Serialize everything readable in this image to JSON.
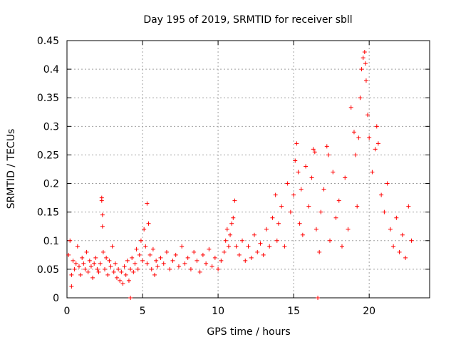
{
  "chart_data": {
    "type": "scatter",
    "title": "Day 195 of 2019, SRMTID for receiver sbll",
    "xlabel": "GPS time / hours",
    "ylabel": "SRMTID / TECUs",
    "xlim": [
      0,
      24
    ],
    "ylim": [
      0,
      0.45
    ],
    "grid": true,
    "marker": "+",
    "color": "#ff0000",
    "xticks": [
      0,
      5,
      10,
      15,
      20
    ],
    "xtick_labels": [
      "0",
      "5",
      "10",
      "15",
      "20"
    ],
    "yticks": [
      0,
      0.05,
      0.1,
      0.15,
      0.2,
      0.25,
      0.3,
      0.35,
      0.4,
      0.45
    ],
    "ytick_labels": [
      "0",
      "0.05",
      "0.1",
      "0.15",
      "0.2",
      "0.25",
      "0.3",
      "0.35",
      "0.4",
      "0.45"
    ],
    "series": [
      {
        "name": "SRMTID",
        "points": [
          [
            0.1,
            0.075
          ],
          [
            0.2,
            0.1
          ],
          [
            0.3,
            0.04
          ],
          [
            0.3,
            0.02
          ],
          [
            0.4,
            0.065
          ],
          [
            0.5,
            0.05
          ],
          [
            0.6,
            0.06
          ],
          [
            0.7,
            0.09
          ],
          [
            0.8,
            0.055
          ],
          [
            0.9,
            0.04
          ],
          [
            1.0,
            0.07
          ],
          [
            1.1,
            0.06
          ],
          [
            1.2,
            0.05
          ],
          [
            1.3,
            0.08
          ],
          [
            1.4,
            0.045
          ],
          [
            1.5,
            0.065
          ],
          [
            1.6,
            0.055
          ],
          [
            1.7,
            0.035
          ],
          [
            1.8,
            0.06
          ],
          [
            1.9,
            0.07
          ],
          [
            2.0,
            0.05
          ],
          [
            2.1,
            0.045
          ],
          [
            2.2,
            0.06
          ],
          [
            2.3,
            0.175
          ],
          [
            2.3,
            0.17
          ],
          [
            2.35,
            0.145
          ],
          [
            2.35,
            0.125
          ],
          [
            2.4,
            0.08
          ],
          [
            2.5,
            0.05
          ],
          [
            2.6,
            0.07
          ],
          [
            2.7,
            0.04
          ],
          [
            2.8,
            0.065
          ],
          [
            2.9,
            0.055
          ],
          [
            3.0,
            0.09
          ],
          [
            3.1,
            0.045
          ],
          [
            3.2,
            0.06
          ],
          [
            3.3,
            0.035
          ],
          [
            3.4,
            0.05
          ],
          [
            3.5,
            0.03
          ],
          [
            3.6,
            0.045
          ],
          [
            3.7,
            0.025
          ],
          [
            3.8,
            0.055
          ],
          [
            3.9,
            0.04
          ],
          [
            4.0,
            0.065
          ],
          [
            4.1,
            0.03
          ],
          [
            4.2,
            0.05
          ],
          [
            4.2,
            0.0
          ],
          [
            4.3,
            0.07
          ],
          [
            4.4,
            0.045
          ],
          [
            4.5,
            0.06
          ],
          [
            4.6,
            0.085
          ],
          [
            4.7,
            0.05
          ],
          [
            4.8,
            0.075
          ],
          [
            4.9,
            0.1
          ],
          [
            5.0,
            0.065
          ],
          [
            5.1,
            0.12
          ],
          [
            5.2,
            0.09
          ],
          [
            5.3,
            0.06
          ],
          [
            5.3,
            0.165
          ],
          [
            5.4,
            0.13
          ],
          [
            5.5,
            0.075
          ],
          [
            5.6,
            0.05
          ],
          [
            5.7,
            0.085
          ],
          [
            5.8,
            0.04
          ],
          [
            5.9,
            0.065
          ],
          [
            6.0,
            0.055
          ],
          [
            6.2,
            0.07
          ],
          [
            6.4,
            0.06
          ],
          [
            6.6,
            0.08
          ],
          [
            6.8,
            0.05
          ],
          [
            7.0,
            0.065
          ],
          [
            7.2,
            0.075
          ],
          [
            7.4,
            0.055
          ],
          [
            7.6,
            0.09
          ],
          [
            7.8,
            0.06
          ],
          [
            8.0,
            0.07
          ],
          [
            8.2,
            0.05
          ],
          [
            8.4,
            0.08
          ],
          [
            8.6,
            0.065
          ],
          [
            8.8,
            0.045
          ],
          [
            9.0,
            0.075
          ],
          [
            9.2,
            0.06
          ],
          [
            9.4,
            0.085
          ],
          [
            9.6,
            0.055
          ],
          [
            9.8,
            0.07
          ],
          [
            10.0,
            0.05
          ],
          [
            10.2,
            0.065
          ],
          [
            10.4,
            0.08
          ],
          [
            10.5,
            0.1
          ],
          [
            10.6,
            0.12
          ],
          [
            10.7,
            0.09
          ],
          [
            10.8,
            0.11
          ],
          [
            10.9,
            0.13
          ],
          [
            11.0,
            0.14
          ],
          [
            11.1,
            0.17
          ],
          [
            11.2,
            0.09
          ],
          [
            11.4,
            0.075
          ],
          [
            11.6,
            0.1
          ],
          [
            11.8,
            0.065
          ],
          [
            12.0,
            0.09
          ],
          [
            12.2,
            0.07
          ],
          [
            12.4,
            0.11
          ],
          [
            12.6,
            0.08
          ],
          [
            12.8,
            0.095
          ],
          [
            13.0,
            0.075
          ],
          [
            13.2,
            0.12
          ],
          [
            13.4,
            0.09
          ],
          [
            13.6,
            0.14
          ],
          [
            13.8,
            0.18
          ],
          [
            13.9,
            0.1
          ],
          [
            14.0,
            0.13
          ],
          [
            14.2,
            0.16
          ],
          [
            14.4,
            0.09
          ],
          [
            14.6,
            0.2
          ],
          [
            14.8,
            0.15
          ],
          [
            15.0,
            0.18
          ],
          [
            15.1,
            0.24
          ],
          [
            15.2,
            0.27
          ],
          [
            15.3,
            0.22
          ],
          [
            15.4,
            0.13
          ],
          [
            15.5,
            0.19
          ],
          [
            15.6,
            0.11
          ],
          [
            15.8,
            0.23
          ],
          [
            16.0,
            0.16
          ],
          [
            16.2,
            0.21
          ],
          [
            16.3,
            0.26
          ],
          [
            16.4,
            0.255
          ],
          [
            16.5,
            0.12
          ],
          [
            16.6,
            0.0
          ],
          [
            16.7,
            0.08
          ],
          [
            16.8,
            0.15
          ],
          [
            17.0,
            0.19
          ],
          [
            17.2,
            0.265
          ],
          [
            17.3,
            0.25
          ],
          [
            17.4,
            0.1
          ],
          [
            17.6,
            0.22
          ],
          [
            17.8,
            0.14
          ],
          [
            18.0,
            0.17
          ],
          [
            18.2,
            0.09
          ],
          [
            18.4,
            0.21
          ],
          [
            18.6,
            0.12
          ],
          [
            18.8,
            0.333
          ],
          [
            19.0,
            0.29
          ],
          [
            19.1,
            0.25
          ],
          [
            19.2,
            0.16
          ],
          [
            19.3,
            0.28
          ],
          [
            19.4,
            0.35
          ],
          [
            19.5,
            0.4
          ],
          [
            19.6,
            0.42
          ],
          [
            19.7,
            0.43
          ],
          [
            19.75,
            0.41
          ],
          [
            19.8,
            0.38
          ],
          [
            19.9,
            0.32
          ],
          [
            20.0,
            0.28
          ],
          [
            20.2,
            0.22
          ],
          [
            20.4,
            0.26
          ],
          [
            20.5,
            0.3
          ],
          [
            20.6,
            0.27
          ],
          [
            20.8,
            0.18
          ],
          [
            21.0,
            0.15
          ],
          [
            21.2,
            0.2
          ],
          [
            21.4,
            0.12
          ],
          [
            21.6,
            0.09
          ],
          [
            21.8,
            0.14
          ],
          [
            22.0,
            0.08
          ],
          [
            22.2,
            0.11
          ],
          [
            22.4,
            0.07
          ],
          [
            22.6,
            0.16
          ],
          [
            22.8,
            0.1
          ]
        ]
      }
    ]
  }
}
